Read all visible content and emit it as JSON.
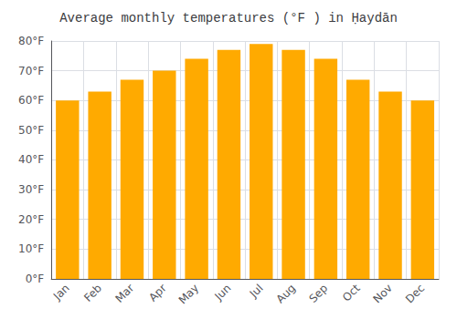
{
  "chart_data": {
    "type": "bar",
    "title": "Average monthly temperatures (°F ) in Ḥaydān",
    "categories": [
      "Jan",
      "Feb",
      "Mar",
      "Apr",
      "May",
      "Jun",
      "Jul",
      "Aug",
      "Sep",
      "Oct",
      "Nov",
      "Dec"
    ],
    "values": [
      60,
      63,
      67,
      70,
      74,
      77,
      79,
      77,
      74,
      67,
      63,
      60
    ],
    "color": "#FFAA00",
    "ylim": [
      0,
      80
    ],
    "yticks": [
      {
        "value": 0,
        "label": "0°F"
      },
      {
        "value": 10,
        "label": "10°F"
      },
      {
        "value": 20,
        "label": "20°F"
      },
      {
        "value": 30,
        "label": "30°F"
      },
      {
        "value": 40,
        "label": "40°F"
      },
      {
        "value": 50,
        "label": "50°F"
      },
      {
        "value": 60,
        "label": "60°F"
      },
      {
        "value": 70,
        "label": "70°F"
      },
      {
        "value": 80,
        "label": "80°F"
      }
    ],
    "grid": true
  }
}
